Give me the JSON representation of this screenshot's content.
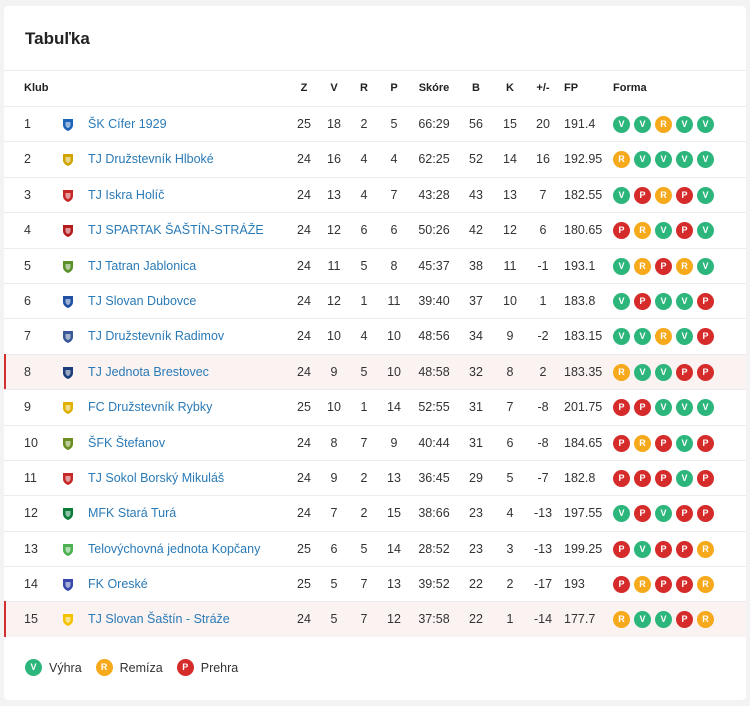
{
  "title": "Tabuľka",
  "columns": {
    "klub": "Klub",
    "z": "Z",
    "v": "V",
    "r": "R",
    "p": "P",
    "skore": "Skóre",
    "b": "B",
    "k": "K",
    "diff": "+/-",
    "fp": "FP",
    "forma": "Forma"
  },
  "colors": {
    "win": "#2db67c",
    "draw": "#f6a91a",
    "loss": "#d62b2b",
    "link": "#2a7ab6",
    "highlight_row": "#fbf2f2",
    "highlight_bar": "#d32f2f"
  },
  "rows": [
    {
      "rank": "1",
      "club": "ŠK Cífer 1929",
      "logo": "club-crest-icon",
      "z": "25",
      "v": "18",
      "r": "2",
      "p": "5",
      "score": "66:29",
      "b": "56",
      "k": "15",
      "diff": "20",
      "fp": "191.4",
      "form": [
        "V",
        "V",
        "R",
        "V",
        "V"
      ],
      "highlight": false
    },
    {
      "rank": "2",
      "club": "TJ Družstevník Hlboké",
      "logo": "club-crest-icon",
      "z": "24",
      "v": "16",
      "r": "4",
      "p": "4",
      "score": "62:25",
      "b": "52",
      "k": "14",
      "diff": "16",
      "fp": "192.95",
      "form": [
        "R",
        "V",
        "V",
        "V",
        "V"
      ],
      "highlight": false
    },
    {
      "rank": "3",
      "club": "TJ Iskra Holíč",
      "logo": "club-crest-icon",
      "z": "24",
      "v": "13",
      "r": "4",
      "p": "7",
      "score": "43:28",
      "b": "43",
      "k": "13",
      "diff": "7",
      "fp": "182.55",
      "form": [
        "V",
        "P",
        "R",
        "P",
        "V"
      ],
      "highlight": false
    },
    {
      "rank": "4",
      "club": "TJ SPARTAK ŠAŠTÍN-STRÁŽE",
      "logo": "club-crest-icon",
      "z": "24",
      "v": "12",
      "r": "6",
      "p": "6",
      "score": "50:26",
      "b": "42",
      "k": "12",
      "diff": "6",
      "fp": "180.65",
      "form": [
        "P",
        "R",
        "V",
        "P",
        "V"
      ],
      "highlight": false
    },
    {
      "rank": "5",
      "club": "TJ Tatran Jablonica",
      "logo": "club-crest-icon",
      "z": "24",
      "v": "11",
      "r": "5",
      "p": "8",
      "score": "45:37",
      "b": "38",
      "k": "11",
      "diff": "-1",
      "fp": "193.1",
      "form": [
        "V",
        "R",
        "P",
        "R",
        "V"
      ],
      "highlight": false
    },
    {
      "rank": "6",
      "club": "TJ Slovan Dubovce",
      "logo": "club-crest-icon",
      "z": "24",
      "v": "12",
      "r": "1",
      "p": "11",
      "score": "39:40",
      "b": "37",
      "k": "10",
      "diff": "1",
      "fp": "183.8",
      "form": [
        "V",
        "P",
        "V",
        "V",
        "P"
      ],
      "highlight": false
    },
    {
      "rank": "7",
      "club": "TJ Družstevník Radimov",
      "logo": "club-crest-icon",
      "z": "24",
      "v": "10",
      "r": "4",
      "p": "10",
      "score": "48:56",
      "b": "34",
      "k": "9",
      "diff": "-2",
      "fp": "183.15",
      "form": [
        "V",
        "V",
        "R",
        "V",
        "P"
      ],
      "highlight": false
    },
    {
      "rank": "8",
      "club": "TJ Jednota Brestovec",
      "logo": "club-crest-icon",
      "z": "24",
      "v": "9",
      "r": "5",
      "p": "10",
      "score": "48:58",
      "b": "32",
      "k": "8",
      "diff": "2",
      "fp": "183.35",
      "form": [
        "R",
        "V",
        "V",
        "P",
        "P"
      ],
      "highlight": true
    },
    {
      "rank": "9",
      "club": "FC Družstevník Rybky",
      "logo": "club-crest-icon",
      "z": "25",
      "v": "10",
      "r": "1",
      "p": "14",
      "score": "52:55",
      "b": "31",
      "k": "7",
      "diff": "-8",
      "fp": "201.75",
      "form": [
        "P",
        "P",
        "V",
        "V",
        "V"
      ],
      "highlight": false
    },
    {
      "rank": "10",
      "club": "ŠFK Štefanov",
      "logo": "club-crest-icon",
      "z": "24",
      "v": "8",
      "r": "7",
      "p": "9",
      "score": "40:44",
      "b": "31",
      "k": "6",
      "diff": "-8",
      "fp": "184.65",
      "form": [
        "P",
        "R",
        "P",
        "V",
        "P"
      ],
      "highlight": false
    },
    {
      "rank": "11",
      "club": "TJ Sokol Borský Mikuláš",
      "logo": "club-crest-icon",
      "z": "24",
      "v": "9",
      "r": "2",
      "p": "13",
      "score": "36:45",
      "b": "29",
      "k": "5",
      "diff": "-7",
      "fp": "182.8",
      "form": [
        "P",
        "P",
        "P",
        "V",
        "P"
      ],
      "highlight": false
    },
    {
      "rank": "12",
      "club": "MFK Stará Turá",
      "logo": "club-crest-icon",
      "z": "24",
      "v": "7",
      "r": "2",
      "p": "15",
      "score": "38:66",
      "b": "23",
      "k": "4",
      "diff": "-13",
      "fp": "197.55",
      "form": [
        "V",
        "P",
        "V",
        "P",
        "P"
      ],
      "highlight": false
    },
    {
      "rank": "13",
      "club": "Telovýchovná jednota Kopčany",
      "logo": "club-crest-icon",
      "z": "25",
      "v": "6",
      "r": "5",
      "p": "14",
      "score": "28:52",
      "b": "23",
      "k": "3",
      "diff": "-13",
      "fp": "199.25",
      "form": [
        "P",
        "V",
        "P",
        "P",
        "R"
      ],
      "highlight": false
    },
    {
      "rank": "14",
      "club": "FK Oreské",
      "logo": "club-crest-icon",
      "z": "25",
      "v": "5",
      "r": "7",
      "p": "13",
      "score": "39:52",
      "b": "22",
      "k": "2",
      "diff": "-17",
      "fp": "193",
      "form": [
        "P",
        "R",
        "P",
        "P",
        "R"
      ],
      "highlight": false
    },
    {
      "rank": "15",
      "club": "TJ Slovan Šaštín - Stráže",
      "logo": "club-crest-icon",
      "z": "24",
      "v": "5",
      "r": "7",
      "p": "12",
      "score": "37:58",
      "b": "22",
      "k": "1",
      "diff": "-14",
      "fp": "177.7",
      "form": [
        "R",
        "V",
        "V",
        "P",
        "R"
      ],
      "highlight": true
    }
  ],
  "legend": [
    {
      "letter": "V",
      "label": "Výhra"
    },
    {
      "letter": "R",
      "label": "Remíza"
    },
    {
      "letter": "P",
      "label": "Prehra"
    }
  ]
}
